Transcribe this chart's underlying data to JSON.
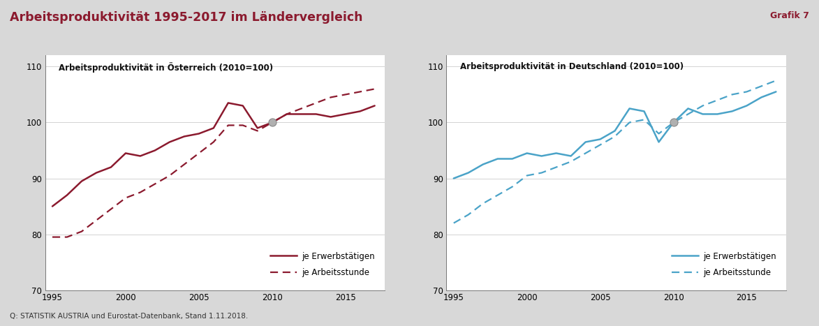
{
  "title": "Arbeitsproduktivität 1995-2017 im Ländervergleich",
  "grafik_label": "Grafik 7",
  "source_text": "Q: STATISTIK AUSTRIA und Eurostat-Datenbank, Stand 1.11.2018.",
  "background_color": "#d8d8d8",
  "plot_bg_color": "#ffffff",
  "title_color": "#8b1a2e",
  "grafik_color": "#8b1a2e",
  "legend_label_solid": "je Erwerbstätigen",
  "legend_label_dashed": "je Arbeitsstunde",
  "left_chart": {
    "title": "Arbeitsproduktivität in Österreich (2010=100)",
    "color": "#8b1a2e",
    "years": [
      1995,
      1996,
      1997,
      1998,
      1999,
      2000,
      2001,
      2002,
      2003,
      2004,
      2005,
      2006,
      2007,
      2008,
      2009,
      2010,
      2011,
      2012,
      2013,
      2014,
      2015,
      2016,
      2017
    ],
    "solid": [
      85.0,
      87.0,
      89.5,
      91.0,
      92.0,
      94.5,
      94.0,
      95.0,
      96.5,
      97.5,
      98.0,
      99.0,
      103.5,
      103.0,
      99.0,
      100.0,
      101.5,
      101.5,
      101.5,
      101.0,
      101.5,
      102.0,
      103.0
    ],
    "dashed": [
      79.5,
      79.5,
      80.5,
      82.5,
      84.5,
      86.5,
      87.5,
      89.0,
      90.5,
      92.5,
      94.5,
      96.5,
      99.5,
      99.5,
      98.5,
      100.0,
      101.5,
      102.5,
      103.5,
      104.5,
      105.0,
      105.5,
      106.0
    ],
    "marker_year": 2010,
    "marker_value_solid": 100.0,
    "ylim": [
      70,
      112
    ],
    "yticks": [
      70,
      80,
      90,
      100,
      110
    ]
  },
  "right_chart": {
    "title": "Arbeitsproduktivität in Deutschland (2010=100)",
    "color": "#4aa3c8",
    "years": [
      1995,
      1996,
      1997,
      1998,
      1999,
      2000,
      2001,
      2002,
      2003,
      2004,
      2005,
      2006,
      2007,
      2008,
      2009,
      2010,
      2011,
      2012,
      2013,
      2014,
      2015,
      2016,
      2017
    ],
    "solid": [
      90.0,
      91.0,
      92.5,
      93.5,
      93.5,
      94.5,
      94.0,
      94.5,
      94.0,
      96.5,
      97.0,
      98.5,
      102.5,
      102.0,
      96.5,
      100.0,
      102.5,
      101.5,
      101.5,
      102.0,
      103.0,
      104.5,
      105.5
    ],
    "dashed": [
      82.0,
      83.5,
      85.5,
      87.0,
      88.5,
      90.5,
      91.0,
      92.0,
      93.0,
      94.5,
      96.0,
      97.5,
      100.0,
      100.5,
      98.0,
      100.0,
      101.5,
      103.0,
      104.0,
      105.0,
      105.5,
      106.5,
      107.5
    ],
    "marker_year": 2010,
    "marker_value_solid": 100.0,
    "ylim": [
      70,
      112
    ],
    "yticks": [
      70,
      80,
      90,
      100,
      110
    ]
  },
  "xlim": [
    1994.5,
    2017.7
  ],
  "xticks": [
    1995,
    2000,
    2005,
    2010,
    2015
  ]
}
